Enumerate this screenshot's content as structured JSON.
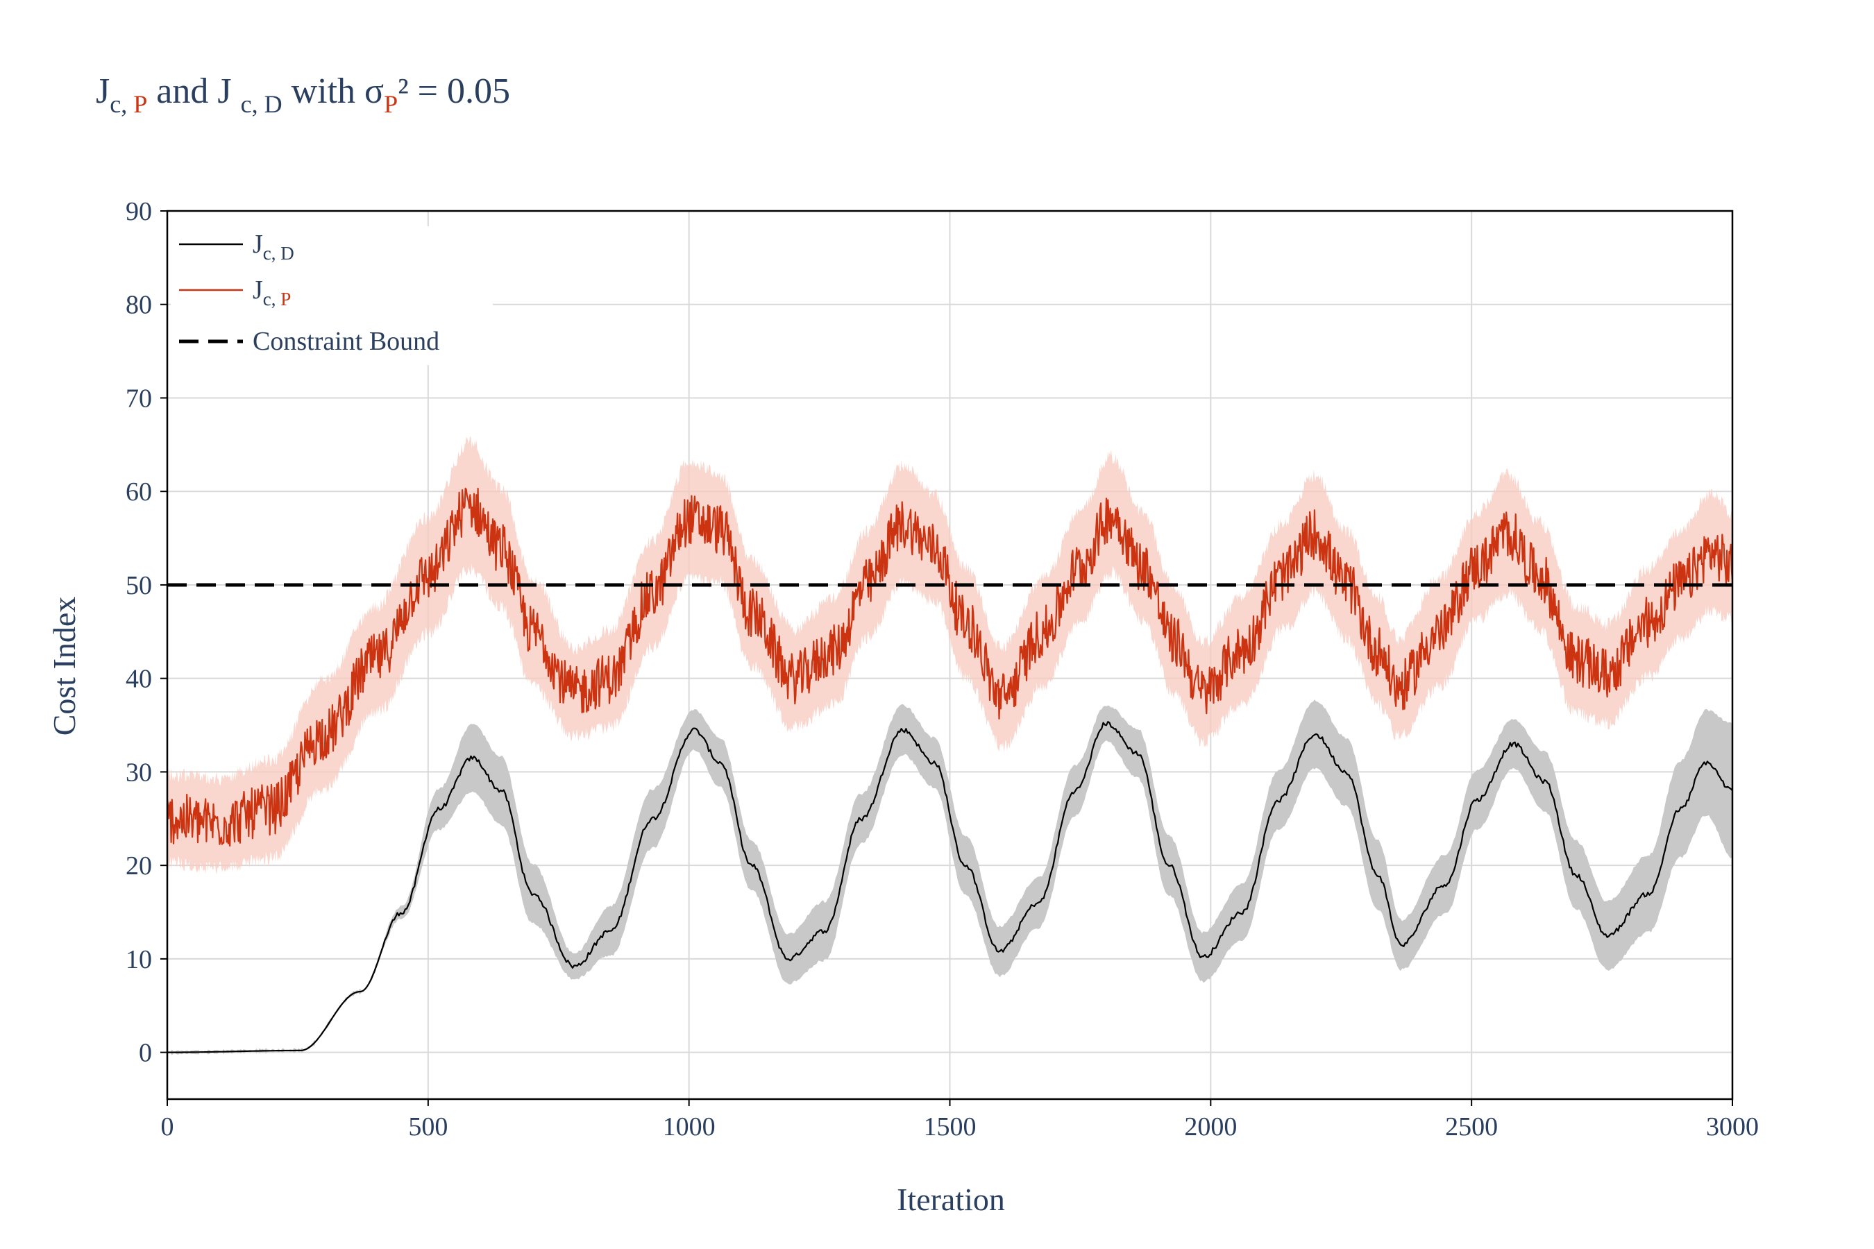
{
  "title": {
    "part1_main": "J",
    "part1_sub_a": "c, ",
    "part1_sub_b": "P",
    "part2": " and J ",
    "part2_sub": "c, D",
    "part3": "  with σ",
    "part3_sub": "P",
    "part4": "² = 0.05"
  },
  "legend": {
    "d_main": "J",
    "d_sub": "c, D",
    "p_main": "J",
    "p_sub_a": "c, ",
    "p_sub_b": "P",
    "bound_label": "Constraint Bound"
  },
  "colors": {
    "jcd_line": "#000000",
    "jcd_band": "#c8c8c8",
    "jcp_line": "#cc3311",
    "jcp_band": "#f7c9bd",
    "bound": "#000000",
    "grid": "#d9d9d9",
    "text": "#2a3f5f"
  },
  "chart_data": {
    "type": "line",
    "xlabel": "Iteration",
    "ylabel": "Cost Index",
    "xlim": [
      0,
      3000
    ],
    "ylim": [
      -5,
      90
    ],
    "xticks": [
      0,
      500,
      1000,
      1500,
      2000,
      2500,
      3000
    ],
    "yticks": [
      0,
      10,
      20,
      30,
      40,
      50,
      60,
      70,
      80,
      90
    ],
    "grid": true,
    "legend_position": "top-left",
    "constraint_bound": 50,
    "series": [
      {
        "name": "J c, D",
        "style": "solid",
        "x": [
          0,
          255,
          370,
          450,
          520,
          585,
          640,
          700,
          780,
          850,
          930,
          1010,
          1060,
          1120,
          1190,
          1260,
          1330,
          1410,
          1470,
          1530,
          1595,
          1670,
          1740,
          1800,
          1860,
          1920,
          1985,
          2060,
          2130,
          2200,
          2260,
          2320,
          2365,
          2450,
          2510,
          2580,
          2640,
          2700,
          2760,
          2840,
          2900,
          2950,
          3000
        ],
        "y": [
          0,
          0.2,
          6.5,
          15,
          26,
          31.5,
          28,
          17,
          9.2,
          13,
          25,
          34.5,
          31,
          20,
          10,
          13,
          25,
          34.5,
          31,
          20,
          10.8,
          16,
          28,
          35.2,
          32,
          20,
          10.2,
          15,
          27,
          34,
          30,
          19,
          11.5,
          18,
          27,
          33,
          29,
          19,
          12.5,
          17,
          26,
          31,
          28
        ],
        "band_halfwidth": [
          0,
          0,
          0,
          0.5,
          2,
          3.5,
          3.5,
          3,
          1.2,
          2.5,
          3,
          2,
          2.5,
          2.5,
          2.5,
          3,
          2.5,
          2.5,
          2.5,
          3,
          2.5,
          2.5,
          2.5,
          1.8,
          2.5,
          3,
          2.5,
          2.8,
          3,
          3.5,
          3.5,
          3.5,
          2.5,
          3,
          3,
          2.5,
          3,
          3.5,
          3.5,
          4,
          5,
          5.5,
          7
        ]
      },
      {
        "name": "J c, P",
        "style": "solid",
        "x": [
          0,
          100,
          200,
          300,
          400,
          500,
          580,
          640,
          700,
          780,
          850,
          930,
          1000,
          1060,
          1120,
          1200,
          1280,
          1340,
          1410,
          1470,
          1530,
          1600,
          1680,
          1750,
          1810,
          1870,
          1930,
          1985,
          2060,
          2140,
          2200,
          2260,
          2320,
          2360,
          2440,
          2510,
          2570,
          2630,
          2700,
          2760,
          2840,
          2900,
          2960,
          3000
        ],
        "y": [
          25,
          24.5,
          26,
          34,
          42,
          51,
          58.5,
          54,
          45,
          38.5,
          40,
          49,
          57,
          56,
          47,
          40,
          43,
          50,
          56.5,
          54,
          46,
          38,
          45,
          52,
          57.5,
          52,
          44,
          38.5,
          43,
          51,
          55.5,
          50,
          43,
          39,
          45,
          52,
          55.5,
          51,
          42,
          40.5,
          46,
          50,
          53.5,
          52
        ],
        "band_halfwidth": [
          4,
          4,
          4.5,
          5,
          5,
          5.5,
          6,
          5.5,
          5,
          4,
          4.5,
          5,
          5.5,
          5,
          5,
          4.5,
          5,
          5,
          5.5,
          5,
          5,
          4.5,
          5,
          5,
          5.5,
          5,
          5,
          4.5,
          5,
          5,
          5.5,
          5,
          5,
          4.5,
          5,
          5,
          5.5,
          5,
          5,
          4.5,
          5,
          5,
          5.5,
          5
        ]
      }
    ]
  }
}
